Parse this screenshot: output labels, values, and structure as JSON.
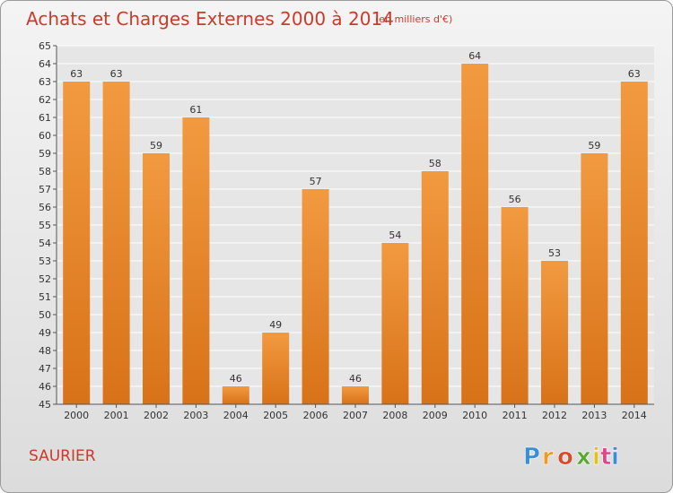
{
  "header": {
    "title": "Achats et Charges Externes 2000 à 2014",
    "subtitle": "(en milliers d'€)"
  },
  "footer": {
    "commune": "SAURIER",
    "logo": {
      "letters": [
        "P",
        "r",
        "o",
        "x",
        "i",
        "t",
        "i"
      ],
      "letter_colors": [
        "#3a8fd4",
        "#f29a1f",
        "#d94a2a",
        "#5aa832",
        "#e0c21a",
        "#d94a8a",
        "#3a8fd4"
      ]
    }
  },
  "chart_data": {
    "type": "bar",
    "title": "Achats et Charges Externes 2000 à 2014",
    "subtitle": "(en milliers d'€)",
    "categories": [
      "2000",
      "2001",
      "2002",
      "2003",
      "2004",
      "2005",
      "2006",
      "2007",
      "2008",
      "2009",
      "2010",
      "2011",
      "2012",
      "2013",
      "2014"
    ],
    "values": [
      63,
      63,
      59,
      61,
      46,
      49,
      57,
      46,
      54,
      58,
      64,
      56,
      53,
      59,
      63
    ],
    "ylim": [
      45,
      65
    ],
    "yticks": [
      45,
      46,
      47,
      48,
      49,
      50,
      51,
      52,
      53,
      54,
      55,
      56,
      57,
      58,
      59,
      60,
      61,
      62,
      63,
      64,
      65
    ],
    "grid": true,
    "bar_color": "#f29a40",
    "bar_color_dark": "#d87218"
  }
}
